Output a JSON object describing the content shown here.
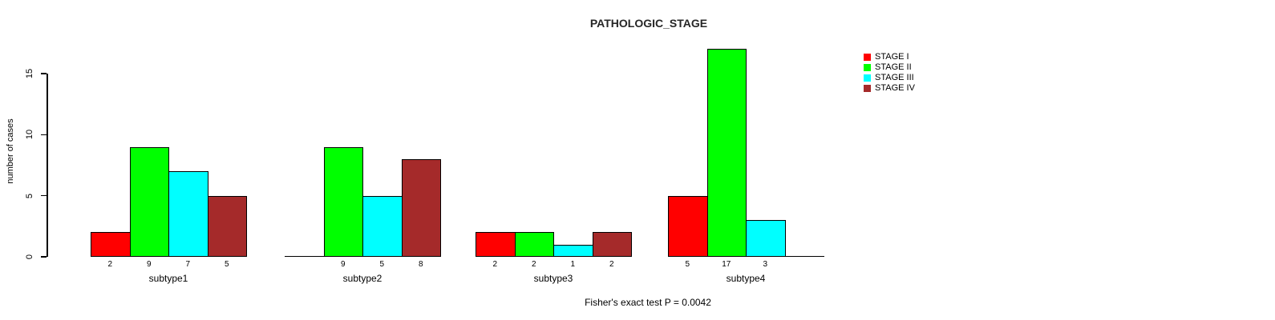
{
  "title": "PATHOLOGIC_STAGE",
  "footnote": "Fisher's exact test P = 0.0042",
  "y_axis": {
    "label": "number of cases",
    "ticks": [
      "0",
      "5",
      "10",
      "15"
    ]
  },
  "chart_data": {
    "type": "bar",
    "title": "PATHOLOGIC_STAGE",
    "categories": [
      "subtype1",
      "subtype2",
      "subtype3",
      "subtype4"
    ],
    "series": [
      {
        "name": "STAGE I",
        "color": "#FF0000",
        "values": [
          2,
          0,
          2,
          5
        ]
      },
      {
        "name": "STAGE II",
        "color": "#00FF00",
        "values": [
          9,
          9,
          2,
          17
        ]
      },
      {
        "name": "STAGE III",
        "color": "#00FFFF",
        "values": [
          7,
          5,
          1,
          3
        ]
      },
      {
        "name": "STAGE IV",
        "color": "#A52A2A",
        "values": [
          5,
          8,
          2,
          0
        ]
      }
    ],
    "xlabel": "",
    "ylabel": "number of cases",
    "ylim": [
      0,
      15
    ],
    "yticks": [
      0,
      5,
      10,
      15
    ],
    "grid": false,
    "legend_position": "right",
    "bar_value_labels_shown": true,
    "zero_bars_drawn_as_baseline_no_label": true,
    "annotation": "Fisher's exact test P = 0.0042"
  }
}
